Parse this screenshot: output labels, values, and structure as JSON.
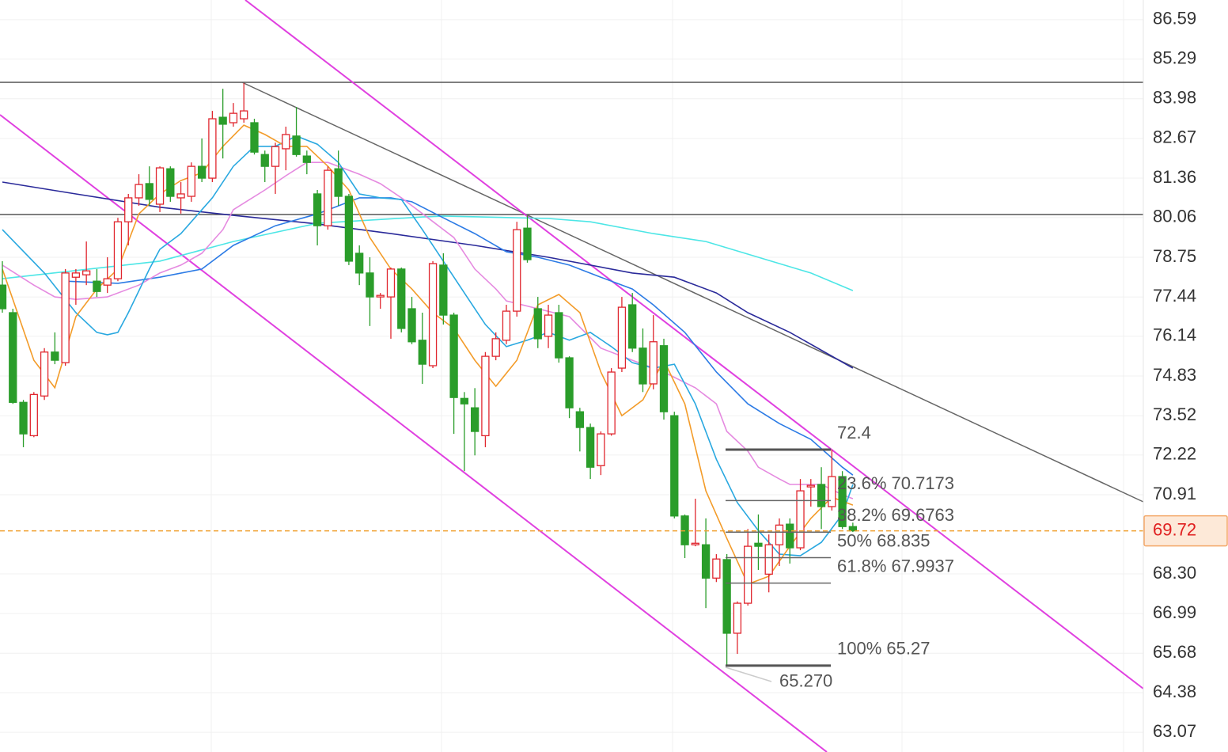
{
  "chart_data": {
    "type": "candlestick",
    "ylim": [
      62.42,
      87.24
    ],
    "yticks": [
      86.59,
      85.29,
      83.98,
      82.67,
      81.36,
      80.06,
      78.75,
      77.44,
      76.14,
      74.83,
      73.52,
      72.22,
      70.91,
      {
        "value": 68.3,
        "label": "68.30"
      },
      66.99,
      65.68,
      64.38,
      63.07
    ],
    "grid": true,
    "up_color": "#e0262e",
    "down_color": "#2a9d2a",
    "open": [
      77.83,
      76.92,
      73.96,
      72.86,
      74.17,
      75.62,
      75.27,
      78.09,
      78.17,
      77.96,
      77.83,
      78.04,
      79.92,
      80.71,
      81.18,
      80.5,
      81.67,
      80.71,
      80.76,
      81.75,
      81.36,
      83.37,
      83.19,
      83.32,
      83.19,
      82.14,
      81.75,
      82.33,
      82.75,
      82.09,
      80.84,
      79.79,
      81.67,
      80.76,
      78.88,
      78.23,
      77.44,
      77.44,
      78.36,
      77.05,
      76.01,
      75.17,
      78.49,
      76.84,
      74.09,
      73.78,
      72.86,
      75.48,
      76.01,
      76.97,
      79.71,
      77.05,
      76.14,
      76.92,
      75.43,
      73.65,
      73.13,
      71.87,
      72.92,
      75.09,
      77.18,
      75.75,
      74.57,
      75.83,
      73.52,
      70.21,
      69.26,
      69.26,
      68.16,
      68.77,
      66.34,
      67.33,
      69.31,
      68.29,
      69.26,
      69.94,
      69.16,
      71.17,
      71.25,
      70.52,
      71.51,
      69.86
    ],
    "high": [
      78.62,
      77.05,
      74.04,
      74.3,
      75.75,
      76.27,
      78.36,
      78.36,
      79.27,
      78.36,
      78.75,
      80.05,
      80.84,
      81.49,
      81.75,
      81.75,
      81.75,
      81.23,
      81.88,
      82.67,
      83.58,
      84.31,
      83.84,
      84.5,
      83.32,
      82.27,
      82.53,
      83.06,
      83.71,
      82.27,
      80.97,
      81.75,
      82.27,
      80.84,
      79.14,
      78.75,
      77.57,
      78.41,
      78.41,
      77.44,
      76.92,
      78.62,
      78.88,
      76.92,
      74.3,
      74.43,
      75.62,
      76.27,
      77.18,
      79.92,
      80.13,
      77.44,
      77.18,
      77.18,
      75.48,
      73.78,
      73.26,
      73.0,
      75.09,
      77.44,
      77.57,
      76.4,
      76.84,
      76.06,
      73.65,
      70.26,
      70.78,
      70.13,
      68.95,
      68.95,
      67.39,
      69.78,
      70.26,
      69.6,
      70.13,
      70.13,
      71.43,
      71.43,
      71.82,
      72.4,
      71.69,
      69.99
    ],
    "low": [
      76.92,
      73.91,
      72.48,
      72.81,
      74.04,
      75.22,
      75.17,
      77.18,
      77.83,
      77.44,
      77.57,
      77.96,
      79.14,
      80.45,
      80.45,
      80.24,
      80.58,
      80.19,
      80.58,
      81.23,
      81.23,
      82.01,
      83.06,
      83.19,
      82.14,
      81.23,
      80.84,
      81.62,
      82.07,
      81.49,
      79.14,
      79.66,
      80.45,
      78.49,
      77.83,
      76.48,
      77.05,
      76.06,
      76.27,
      75.88,
      74.57,
      75.09,
      76.53,
      72.92,
      71.69,
      72.21,
      72.48,
      75.35,
      75.88,
      76.79,
      78.57,
      75.75,
      75.75,
      75.27,
      73.44,
      72.34,
      71.43,
      71.56,
      72.86,
      74.96,
      75.62,
      74.3,
      74.39,
      73.39,
      70.13,
      68.82,
      69.21,
      67.17,
      68.03,
      65.27,
      65.66,
      67.25,
      68.43,
      67.69,
      68.56,
      68.64,
      69.08,
      70.52,
      69.78,
      70.39,
      69.78,
      69.68
    ],
    "close": [
      77.05,
      73.96,
      72.92,
      74.22,
      75.62,
      75.35,
      78.23,
      78.23,
      78.3,
      77.62,
      78.04,
      79.92,
      80.71,
      81.15,
      80.66,
      81.7,
      80.76,
      80.84,
      81.75,
      81.36,
      83.32,
      83.14,
      83.5,
      83.58,
      82.22,
      81.75,
      82.4,
      82.8,
      82.14,
      81.88,
      79.79,
      81.62,
      80.76,
      78.62,
      78.23,
      77.44,
      77.49,
      78.36,
      76.4,
      75.96,
      75.22,
      78.54,
      76.84,
      74.12,
      73.91,
      73.0,
      75.48,
      76.06,
      76.97,
      79.66,
      78.67,
      76.06,
      76.84,
      75.43,
      73.78,
      73.13,
      71.82,
      72.92,
      74.96,
      77.1,
      75.75,
      74.57,
      75.96,
      73.65,
      70.21,
      69.26,
      69.31,
      68.16,
      68.79,
      66.34,
      67.33,
      69.21,
      69.21,
      69.26,
      69.91,
      69.16,
      71.04,
      71.22,
      70.52,
      71.51,
      69.86,
      69.72
    ],
    "ma_lines": [
      {
        "color": "#2a2a9a",
        "x": [
          0,
          7,
          15,
          22,
          30,
          37,
          45,
          52,
          60,
          64,
          68,
          71,
          75,
          81
        ],
        "values": [
          81.23,
          80.84,
          80.4,
          80.13,
          79.85,
          79.53,
          79.14,
          78.75,
          78.23,
          78.09,
          77.57,
          76.92,
          76.27,
          75.09
        ]
      },
      {
        "color": "#4de6e6",
        "x": [
          0,
          15,
          22,
          30,
          40,
          42,
          52,
          56,
          62,
          67,
          72,
          77,
          81
        ],
        "values": [
          78.04,
          78.62,
          79.27,
          79.87,
          80.08,
          80.11,
          80.03,
          79.92,
          79.53,
          79.27,
          78.75,
          78.23,
          77.65
        ]
      },
      {
        "color": "#2c7be5",
        "x": [
          6,
          11,
          15,
          19,
          22,
          26,
          30,
          34,
          37,
          39,
          42,
          45,
          48,
          51,
          54,
          57,
          60,
          62,
          65,
          68,
          71,
          74,
          77,
          80,
          81
        ],
        "values": [
          77.96,
          77.89,
          78.09,
          78.36,
          79.14,
          79.79,
          80.18,
          80.71,
          80.71,
          80.58,
          80.05,
          79.53,
          78.93,
          78.75,
          78.49,
          78.09,
          77.7,
          77.18,
          76.27,
          74.96,
          73.91,
          73.26,
          72.74,
          71.82,
          71.56
        ]
      },
      {
        "color": "#e58ae0",
        "x": [
          0,
          3,
          5,
          7,
          10,
          13,
          15,
          17,
          19,
          21,
          22,
          25,
          27,
          29,
          31,
          34,
          36,
          38,
          40,
          43,
          45,
          47,
          48,
          51,
          54,
          57,
          60,
          63,
          66,
          68,
          69,
          71,
          72,
          74,
          75,
          78,
          80,
          81
        ],
        "values": [
          78.49,
          77.83,
          77.44,
          77.36,
          77.44,
          77.83,
          78.23,
          78.49,
          78.88,
          79.66,
          80.32,
          80.97,
          81.44,
          81.88,
          81.88,
          81.49,
          81.18,
          80.71,
          80.19,
          79.4,
          78.36,
          77.7,
          77.31,
          77.05,
          76.79,
          75.75,
          75.35,
          74.96,
          74.44,
          73.91,
          73.0,
          72.35,
          71.82,
          71.43,
          71.25,
          71.25,
          70.91,
          70.78
        ]
      },
      {
        "color": "#29a8e0",
        "x": [
          0,
          4,
          7,
          9,
          10,
          11,
          12,
          14,
          15,
          17,
          20,
          22,
          24,
          26,
          28,
          30,
          32,
          34,
          36,
          38,
          40,
          42,
          44,
          46,
          48,
          50,
          52,
          54,
          56,
          58,
          60,
          62,
          64,
          66,
          68,
          70,
          72,
          74,
          76,
          78,
          80,
          81
        ],
        "values": [
          79.66,
          78.23,
          76.92,
          76.27,
          76.19,
          76.27,
          76.92,
          78.36,
          79.01,
          79.53,
          80.71,
          81.75,
          82.41,
          82.41,
          82.75,
          82.48,
          81.88,
          80.84,
          80.71,
          80.66,
          79.66,
          78.62,
          77.57,
          76.53,
          75.8,
          76.01,
          76.27,
          76.01,
          76.27,
          75.8,
          75.27,
          75.09,
          75.22,
          73.91,
          72.08,
          70.65,
          69.73,
          68.95,
          68.9,
          69.34,
          70.26,
          71.25
        ]
      },
      {
        "color": "#f39c2a",
        "x": [
          0,
          3,
          5,
          7,
          9,
          11,
          13,
          15,
          17,
          19,
          21,
          23,
          25,
          27,
          29,
          31,
          33,
          35,
          37,
          39,
          41,
          43,
          45,
          47,
          49,
          51,
          53,
          55,
          57,
          59,
          61,
          63,
          65,
          67,
          69,
          71,
          73,
          75,
          77,
          79,
          81
        ],
        "values": [
          78.36,
          75.35,
          74.44,
          76.79,
          77.7,
          78.36,
          80.18,
          80.84,
          81.28,
          81.54,
          82.41,
          83.11,
          82.8,
          82.41,
          82.41,
          81.75,
          80.97,
          79.4,
          78.36,
          77.7,
          76.92,
          76.4,
          75.35,
          74.49,
          75.35,
          77.18,
          77.52,
          76.92,
          74.96,
          73.52,
          74.04,
          75.35,
          73.91,
          71.04,
          69.47,
          67.96,
          68.22,
          69.21,
          70.13,
          70.83,
          70.57
        ]
      }
    ],
    "fib_levels": [
      {
        "value": 72.4,
        "label": "72.4"
      },
      {
        "value": 70.7173,
        "label": "23.6% 70.7173"
      },
      {
        "value": 69.6763,
        "label": "38.2% 69.6763"
      },
      {
        "value": 68.835,
        "label": "50% 68.835"
      },
      {
        "value": 67.9937,
        "label": "61.8% 67.9937"
      },
      {
        "value": 65.27,
        "label": "100% 65.27"
      }
    ],
    "low_label": {
      "value": 65.27,
      "label": "65.270"
    },
    "last_price": 69.72
  }
}
